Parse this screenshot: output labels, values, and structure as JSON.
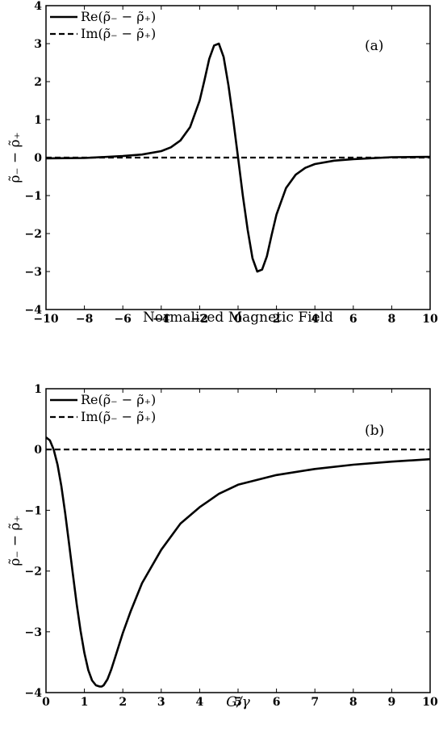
{
  "chart_data": [
    {
      "type": "line",
      "panel_tag": "(a)",
      "xlabel": "Normalized Magnetic Field",
      "ylabel": "ρ̃₋ − ρ̃₊",
      "xlim": [
        -10,
        10
      ],
      "ylim": [
        -4,
        4
      ],
      "xticks": [
        "−10",
        "−8",
        "−6",
        "−4",
        "−2",
        "0",
        "2",
        "4",
        "6",
        "8",
        "10"
      ],
      "yticks": [
        "4",
        "3",
        "2",
        "1",
        "0",
        "−1",
        "−2",
        "−3",
        "−4"
      ],
      "grid": false,
      "legend_position": "top-left",
      "series": [
        {
          "name": "Re(ρ̃₋ − ρ̃₊)",
          "style": "solid",
          "x": [
            -10,
            -8,
            -6,
            -5,
            -4,
            -3.5,
            -3,
            -2.5,
            -2,
            -1.75,
            -1.5,
            -1.25,
            -1,
            -0.75,
            -0.5,
            -0.25,
            0,
            0.25,
            0.5,
            0.75,
            1,
            1.25,
            1.5,
            1.75,
            2,
            2.5,
            3,
            3.5,
            4,
            5,
            6,
            8,
            10
          ],
          "y": [
            -0.02,
            -0.01,
            0.04,
            0.08,
            0.17,
            0.27,
            0.45,
            0.8,
            1.5,
            2.03,
            2.6,
            2.95,
            3.0,
            2.65,
            1.9,
            1.0,
            0.0,
            -1.0,
            -1.9,
            -2.65,
            -3.0,
            -2.95,
            -2.6,
            -2.03,
            -1.5,
            -0.8,
            -0.45,
            -0.27,
            -0.17,
            -0.08,
            -0.04,
            0.01,
            0.02
          ]
        },
        {
          "name": "Im(ρ̃₋ − ρ̃₊)",
          "style": "dashed",
          "x": [
            -10,
            10
          ],
          "y": [
            0,
            0
          ]
        }
      ]
    },
    {
      "type": "line",
      "panel_tag": "(b)",
      "xlabel": "G/γ",
      "ylabel": "ρ̃₋ − ρ̃₊",
      "xlim": [
        0,
        10
      ],
      "ylim": [
        -4,
        1
      ],
      "xticks": [
        "0",
        "1",
        "2",
        "3",
        "4",
        "5",
        "6",
        "7",
        "8",
        "9",
        "10"
      ],
      "yticks": [
        "1",
        "0",
        "−1",
        "−2",
        "−3",
        "−4"
      ],
      "grid": false,
      "legend_position": "top-left",
      "series": [
        {
          "name": "Re(ρ̃₋ − ρ̃₊)",
          "style": "solid",
          "x": [
            0,
            0.1,
            0.2,
            0.3,
            0.4,
            0.5,
            0.6,
            0.7,
            0.8,
            0.9,
            1.0,
            1.1,
            1.2,
            1.3,
            1.4,
            1.45,
            1.5,
            1.6,
            1.7,
            1.8,
            2.0,
            2.2,
            2.5,
            3.0,
            3.5,
            4.0,
            4.5,
            5.0,
            6.0,
            7.0,
            8.0,
            9.0,
            10.0
          ],
          "y": [
            0.2,
            0.15,
            0.0,
            -0.25,
            -0.6,
            -1.05,
            -1.55,
            -2.05,
            -2.55,
            -2.98,
            -3.35,
            -3.63,
            -3.8,
            -3.88,
            -3.9,
            -3.9,
            -3.88,
            -3.78,
            -3.62,
            -3.42,
            -3.02,
            -2.67,
            -2.2,
            -1.65,
            -1.22,
            -0.95,
            -0.73,
            -0.58,
            -0.42,
            -0.32,
            -0.25,
            -0.2,
            -0.16
          ]
        },
        {
          "name": "Im(ρ̃₋ − ρ̃₊)",
          "style": "dashed",
          "x": [
            0,
            10
          ],
          "y": [
            0,
            0
          ]
        }
      ]
    }
  ]
}
